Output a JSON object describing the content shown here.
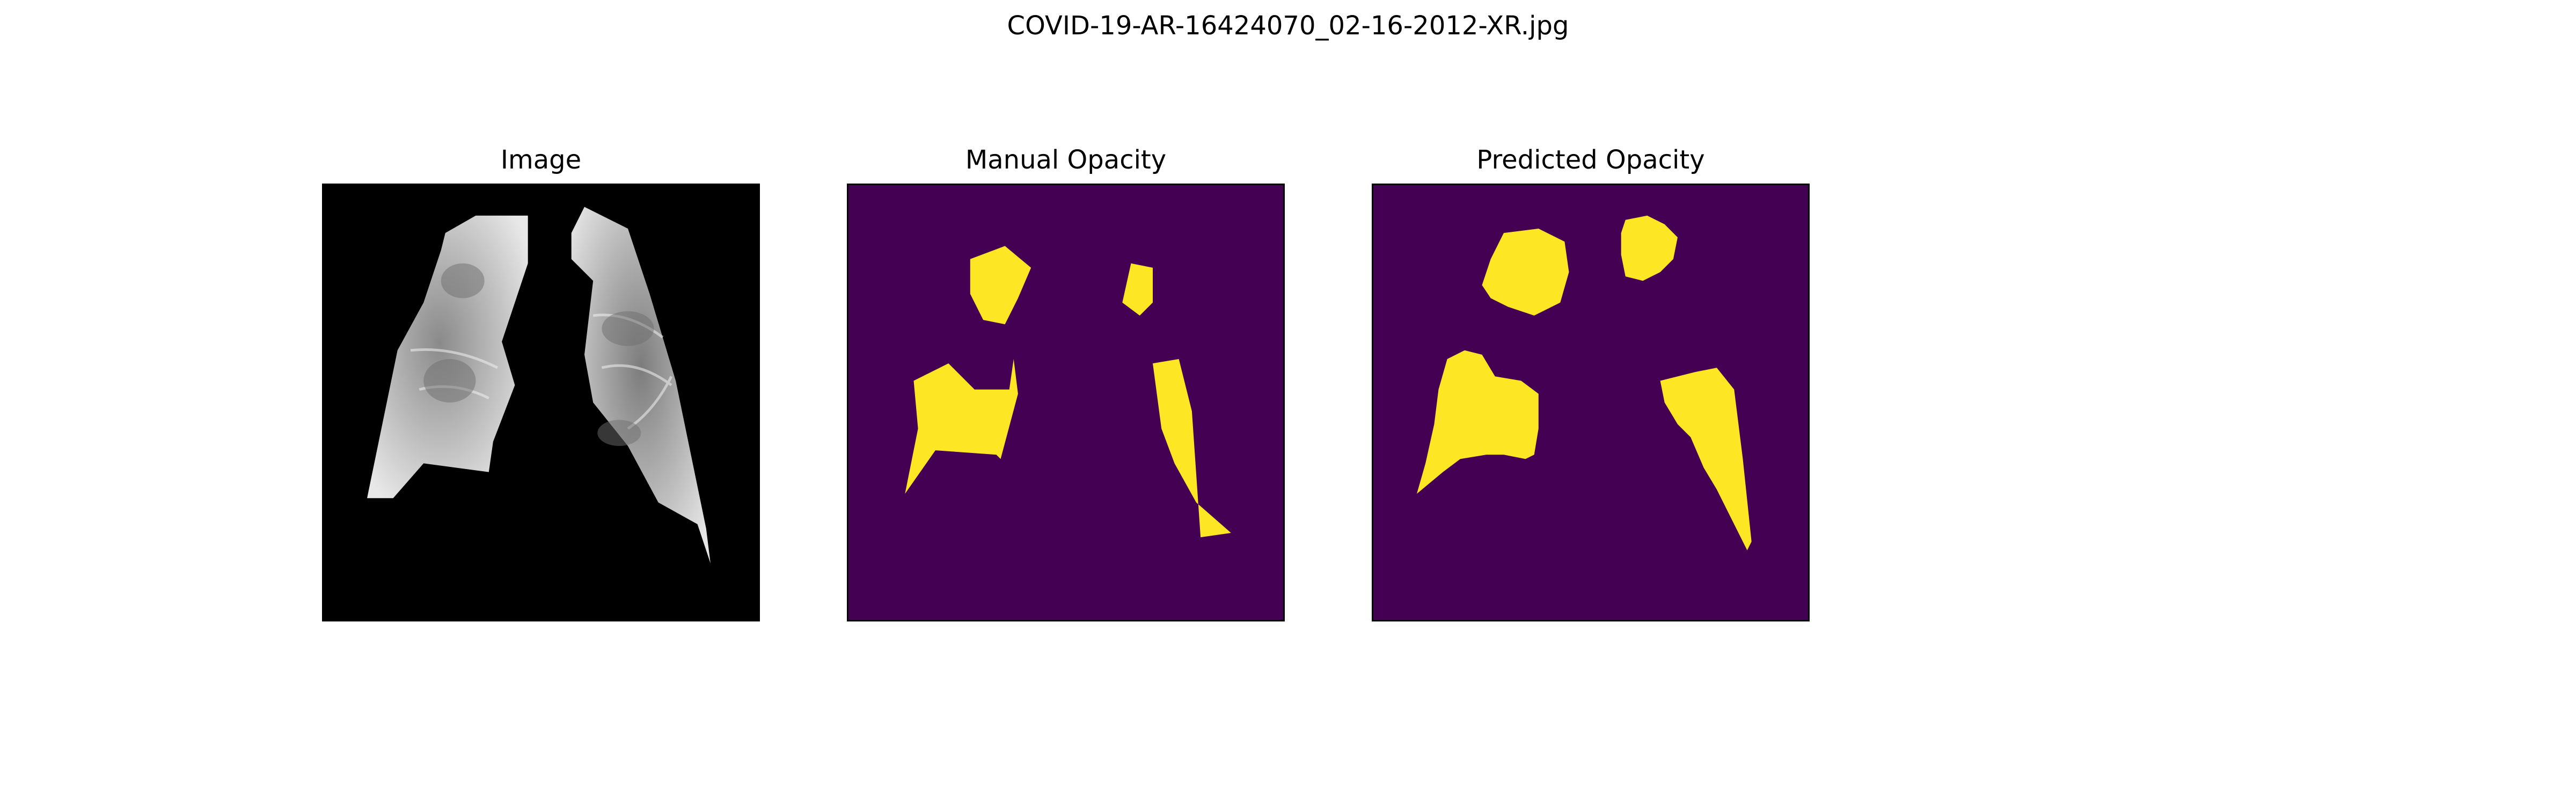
{
  "figure_title": "COVID-19-AR-16424070_02-16-2012-XR.jpg",
  "panels": [
    {
      "title": "Image"
    },
    {
      "title": "Manual Opacity"
    },
    {
      "title": "Predicted Opacity"
    }
  ],
  "colors": {
    "image_background": "#000000",
    "mask_background": "#440154",
    "mask_foreground": "#fde725"
  }
}
